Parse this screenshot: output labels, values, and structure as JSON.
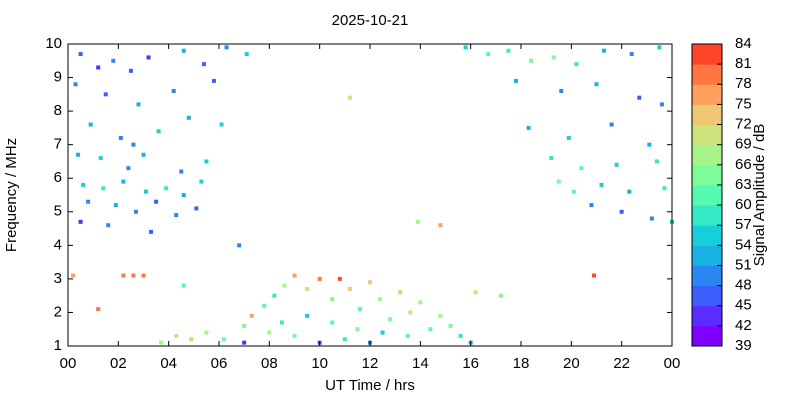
{
  "chart_data": {
    "type": "scatter",
    "title": "2025-10-21",
    "x_label": "UT Time / hrs",
    "y_label": "Frequency / MHz",
    "colorbar_label": "Signal Amplitude / dB",
    "xlim": [
      0,
      24
    ],
    "xticks": [
      {
        "value": 0,
        "label": "00"
      },
      {
        "value": 2,
        "label": "02"
      },
      {
        "value": 4,
        "label": "04"
      },
      {
        "value": 6,
        "label": "06"
      },
      {
        "value": 8,
        "label": "08"
      },
      10,
      12,
      14,
      16,
      18,
      20,
      22,
      {
        "value": 24,
        "label": "00"
      }
    ],
    "ylim": [
      1,
      10
    ],
    "yticks": [
      1,
      2,
      3,
      4,
      5,
      6,
      7,
      8,
      9,
      10
    ],
    "clim": [
      39,
      84
    ],
    "cticks": [
      39,
      42,
      45,
      48,
      51,
      54,
      57,
      60,
      63,
      66,
      69,
      72,
      75,
      78,
      81,
      84
    ],
    "colormap": [
      "#7f00ff",
      "#5b2cff",
      "#3c5cfb",
      "#2a86f0",
      "#19b0e3",
      "#17cfd8",
      "#35e8c6",
      "#55f9b0",
      "#7dfc99",
      "#a7f48a",
      "#cde37c",
      "#efc673",
      "#ffa15a",
      "#ff7540",
      "#ff4628"
    ],
    "x": [
      0.5,
      1.2,
      1.8,
      2.5,
      3.2,
      4.6,
      5.4,
      6.3,
      7.1,
      0.3,
      1.5,
      2.8,
      4.2,
      5.8,
      0.9,
      2.1,
      2.6,
      3.6,
      4.8,
      6.1,
      0.4,
      1.3,
      2.4,
      3.0,
      4.5,
      5.5,
      0.6,
      1.4,
      2.2,
      3.1,
      3.9,
      4.6,
      5.3,
      0.8,
      1.9,
      2.7,
      3.5,
      4.3,
      5.1,
      0.5,
      1.6,
      3.3,
      6.8,
      15.8,
      16.7,
      17.5,
      18.4,
      19.3,
      20.2,
      21.3,
      22.4,
      23.5,
      17.8,
      19.6,
      21.0,
      22.7,
      23.6,
      18.3,
      19.9,
      21.6,
      23.1,
      19.2,
      20.4,
      21.8,
      23.4,
      19.5,
      20.1,
      21.2,
      22.3,
      23.7,
      20.8,
      22.0,
      23.2,
      24.0,
      3.7,
      4.3,
      4.9,
      5.5,
      6.2,
      7.0,
      7.0,
      7.3,
      7.8,
      8.2,
      8.6,
      9.0,
      9.5,
      10.0,
      10.5,
      10.8,
      11.2,
      11.6,
      12.0,
      12.4,
      12.8,
      13.2,
      13.6,
      14.0,
      14.4,
      14.8,
      15.2,
      15.6,
      16.0,
      8.5,
      9.5,
      10.5,
      11.5,
      12.5,
      13.5,
      9.0,
      10.0,
      11.0,
      12.0,
      8.0,
      0.2,
      2.2,
      2.6,
      3.0,
      14.8,
      13.9,
      11.2,
      20.9,
      17.2,
      1.2,
      4.6,
      16.2
    ],
    "y": [
      9.7,
      9.3,
      9.5,
      9.2,
      9.6,
      9.8,
      9.4,
      9.9,
      9.7,
      8.8,
      8.5,
      8.2,
      8.6,
      8.9,
      7.6,
      7.2,
      7.0,
      7.4,
      7.8,
      7.6,
      6.7,
      6.6,
      6.3,
      6.7,
      6.2,
      6.5,
      5.8,
      5.7,
      5.9,
      5.6,
      5.7,
      5.5,
      5.9,
      5.3,
      5.2,
      5.0,
      5.3,
      4.9,
      5.1,
      4.7,
      4.6,
      4.4,
      4.0,
      9.9,
      9.7,
      9.8,
      9.5,
      9.6,
      9.4,
      9.8,
      9.7,
      9.9,
      8.9,
      8.6,
      8.8,
      8.4,
      8.2,
      7.5,
      7.2,
      7.6,
      7.0,
      6.6,
      6.3,
      6.4,
      6.5,
      5.9,
      5.6,
      5.8,
      5.6,
      5.7,
      5.2,
      5.0,
      4.8,
      4.7,
      1.1,
      1.3,
      1.2,
      1.4,
      1.2,
      1.1,
      1.6,
      1.9,
      2.2,
      2.5,
      2.8,
      3.1,
      2.7,
      3.0,
      2.4,
      3.0,
      2.7,
      2.1,
      2.9,
      2.4,
      1.8,
      2.6,
      2.0,
      2.3,
      1.5,
      1.9,
      1.6,
      1.3,
      1.1,
      1.7,
      1.9,
      1.7,
      1.5,
      1.4,
      1.3,
      1.3,
      1.1,
      1.2,
      1.1,
      1.4,
      3.1,
      3.1,
      3.1,
      3.1,
      4.6,
      4.7,
      8.4,
      3.1,
      2.5,
      2.1,
      2.8,
      2.6
    ],
    "values": [
      45,
      42,
      48,
      45,
      42,
      51,
      45,
      48,
      54,
      48,
      45,
      51,
      48,
      45,
      51,
      48,
      48,
      54,
      51,
      54,
      51,
      54,
      48,
      51,
      48,
      54,
      54,
      57,
      51,
      54,
      57,
      51,
      54,
      48,
      51,
      48,
      45,
      48,
      45,
      42,
      48,
      45,
      48,
      54,
      60,
      57,
      63,
      63,
      57,
      51,
      48,
      54,
      51,
      48,
      51,
      45,
      48,
      51,
      54,
      48,
      51,
      57,
      60,
      54,
      57,
      63,
      60,
      54,
      51,
      57,
      48,
      45,
      48,
      54,
      66,
      69,
      72,
      66,
      63,
      42,
      63,
      75,
      60,
      57,
      66,
      75,
      69,
      78,
      63,
      81,
      72,
      60,
      72,
      66,
      63,
      72,
      69,
      66,
      60,
      66,
      63,
      57,
      51,
      57,
      54,
      60,
      63,
      54,
      60,
      63,
      45,
      57,
      48,
      66,
      75,
      78,
      78,
      78,
      75,
      66,
      69,
      84,
      63,
      78,
      60,
      69
    ]
  }
}
